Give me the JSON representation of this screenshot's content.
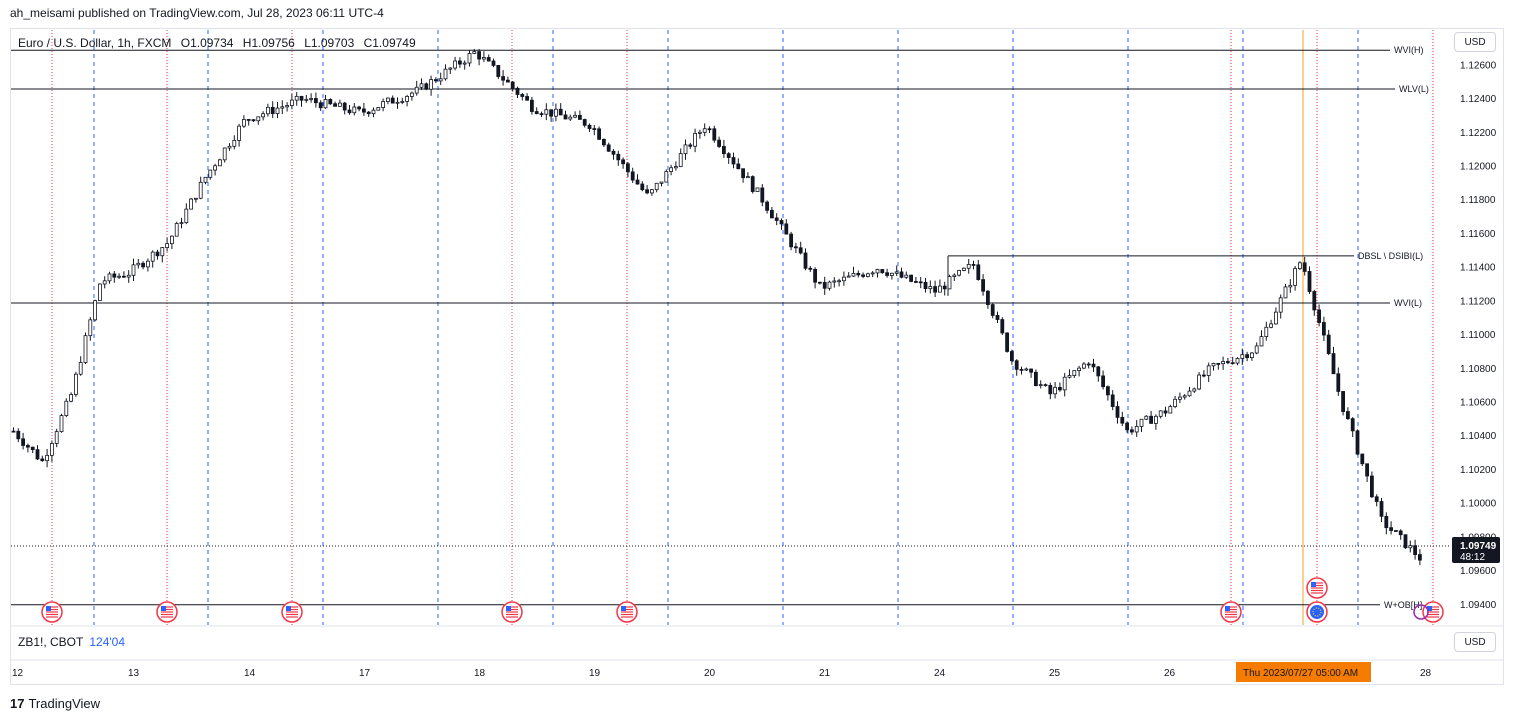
{
  "header": {
    "published_by": "ah_meisami published on TradingView.com, Jul 28, 2023 06:11 UTC-4"
  },
  "legend": {
    "symbol": "Euro / U.S. Dollar, 1h, FXCM",
    "open": "O1.09734",
    "high": "H1.09756",
    "low": "L1.09703",
    "close": "C1.09749"
  },
  "currency_button": "USD",
  "sub_pane": {
    "symbol": "ZB1!, CBOT",
    "value": "124'04",
    "currency_button": "USD"
  },
  "brand": {
    "logo_text": "17",
    "name": "TradingView"
  },
  "chart_data": {
    "type": "candlestick",
    "title": "",
    "x_tick_labels": [
      "12",
      "13",
      "14",
      "17",
      "18",
      "19",
      "20",
      "21",
      "24",
      "25",
      "26",
      "28"
    ],
    "y_tick_labels": [
      "1.12600",
      "1.12400",
      "1.12200",
      "1.12000",
      "1.11800",
      "1.11600",
      "1.11400",
      "1.11200",
      "1.11000",
      "1.10800",
      "1.10600",
      "1.10400",
      "1.10200",
      "1.10000",
      "1.09800",
      "1.09600",
      "1.09400"
    ],
    "y_range": [
      1.0928,
      1.1281
    ],
    "current_price": "1.09749",
    "countdown": "48:12",
    "crosshair_date_label": "Thu 2023/07/27   05:00 AM",
    "horizontal_levels": [
      {
        "label": "WVI(H)",
        "price": 1.1269
      },
      {
        "label": "WLV(L)",
        "price": 1.1246
      },
      {
        "label": "DBSL \\ DSIBI(L)",
        "price": 1.1147
      },
      {
        "label": "WVI(L)",
        "price": 1.1119
      },
      {
        "label": "W+OB[H]",
        "price": 1.094
      }
    ],
    "colors": {
      "candle": "#131722",
      "red_dotted": "#f23645",
      "blue_dashed": "#2962ff",
      "crosshair": "#f0a020",
      "badge": "#f57c00"
    },
    "key_points": [
      [
        "12",
        1.1043
      ],
      [
        "12",
        1.1025
      ],
      [
        "12",
        1.1065
      ],
      [
        "12",
        1.1132
      ],
      [
        "13",
        1.1137
      ],
      [
        "13",
        1.1155
      ],
      [
        "13",
        1.1195
      ],
      [
        "14",
        1.1228
      ],
      [
        "14",
        1.124
      ],
      [
        "17",
        1.1232
      ],
      [
        "17",
        1.1245
      ],
      [
        "18",
        1.1268
      ],
      [
        "18",
        1.1235
      ],
      [
        "19",
        1.1225
      ],
      [
        "19",
        1.1182
      ],
      [
        "20",
        1.1225
      ],
      [
        "20",
        1.118
      ],
      [
        "21",
        1.1128
      ],
      [
        "21",
        1.114
      ],
      [
        "24",
        1.1126
      ],
      [
        "24",
        1.1142
      ],
      [
        "24",
        1.1085
      ],
      [
        "25",
        1.1065
      ],
      [
        "25",
        1.1085
      ],
      [
        "25",
        1.1043
      ],
      [
        "26",
        1.1055
      ],
      [
        "26",
        1.108
      ],
      [
        "26",
        1.1092
      ],
      [
        "27",
        1.1145
      ],
      [
        "27",
        1.106
      ],
      [
        "27",
        1.099
      ],
      [
        "28",
        1.0967
      ],
      [
        "28",
        1.098
      ],
      [
        "28",
        1.095
      ],
      [
        "28",
        1.0975
      ]
    ]
  }
}
